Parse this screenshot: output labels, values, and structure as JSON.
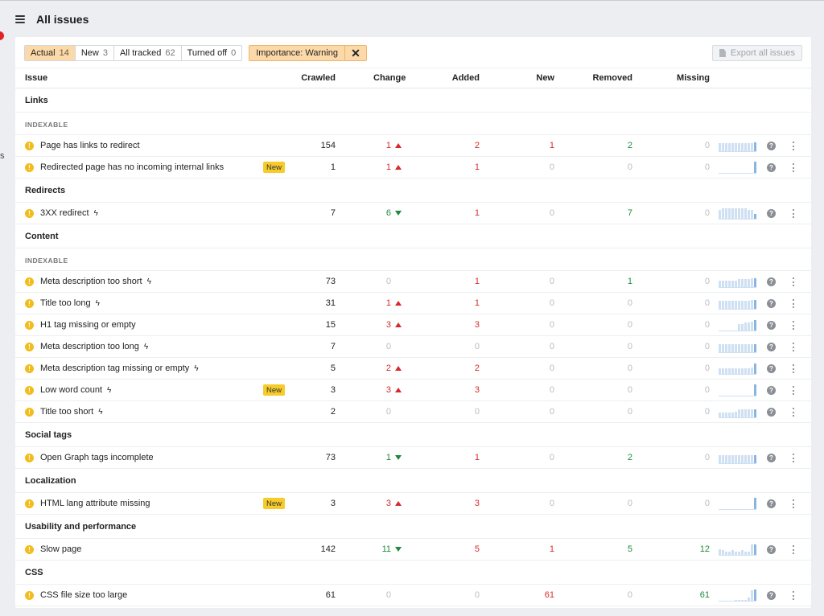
{
  "header": {
    "title": "All issues",
    "menu_icon": "hamburger-icon"
  },
  "sidebar_fragment": "s",
  "filters": {
    "tabs": [
      {
        "label": "Actual",
        "count": "14",
        "active": true
      },
      {
        "label": "New",
        "count": "3",
        "active": false
      },
      {
        "label": "All tracked",
        "count": "62",
        "active": false
      },
      {
        "label": "Turned off",
        "count": "0",
        "active": false
      }
    ],
    "importance_chip": "Importance: Warning",
    "clear_icon": "close-icon"
  },
  "export_label": "Export all issues",
  "columns": {
    "issue": "Issue",
    "crawled": "Crawled",
    "change": "Change",
    "added": "Added",
    "new": "New",
    "removed": "Removed",
    "missing": "Missing"
  },
  "badge_new": "New",
  "warning_icon_glyph": "!",
  "help_icon_glyph": "?",
  "colors": {
    "accent": "#fcd9a8",
    "warning": "#f2bc1c",
    "increase": "#d62a2a",
    "decrease": "#1f8a3c",
    "sparkline": "#cfe0f3"
  },
  "sections": [
    {
      "type": "group",
      "label": "Links"
    },
    {
      "type": "sub",
      "label": "INDEXABLE"
    },
    {
      "type": "row",
      "issue": "Page has links to redirect",
      "bolt": false,
      "is_new": false,
      "crawled": "154",
      "change": "1",
      "change_dir": "up",
      "added": "2",
      "new": "1",
      "removed": "2",
      "missing": "0",
      "spark": [
        7,
        7,
        7,
        7,
        7,
        7,
        7,
        7,
        7,
        7,
        7,
        8
      ]
    },
    {
      "type": "row",
      "issue": "Redirected page has no incoming internal links",
      "bolt": false,
      "is_new": true,
      "crawled": "1",
      "change": "1",
      "change_dir": "up",
      "added": "1",
      "new": "0",
      "removed": "0",
      "missing": "0",
      "spark": [
        0,
        0,
        0,
        0,
        0,
        0,
        0,
        0,
        0,
        0,
        0,
        10
      ]
    },
    {
      "type": "group",
      "label": "Redirects"
    },
    {
      "type": "row",
      "issue": "3XX redirect",
      "bolt": true,
      "is_new": false,
      "crawled": "7",
      "change": "6",
      "change_dir": "down",
      "added": "1",
      "new": "0",
      "removed": "7",
      "missing": "0",
      "spark": [
        8,
        9,
        9,
        9,
        9,
        9,
        9,
        9,
        9,
        8,
        8,
        4
      ]
    },
    {
      "type": "group",
      "label": "Content"
    },
    {
      "type": "sub",
      "label": "INDEXABLE"
    },
    {
      "type": "row",
      "issue": "Meta description too short",
      "bolt": true,
      "is_new": false,
      "crawled": "73",
      "change": "0",
      "change_dir": "none",
      "added": "1",
      "new": "0",
      "removed": "1",
      "missing": "0",
      "spark": [
        6,
        6,
        6,
        6,
        6,
        6,
        7,
        7,
        7,
        7,
        8,
        8
      ]
    },
    {
      "type": "row",
      "issue": "Title too long",
      "bolt": true,
      "is_new": false,
      "crawled": "31",
      "change": "1",
      "change_dir": "up",
      "added": "1",
      "new": "0",
      "removed": "0",
      "missing": "0",
      "spark": [
        7,
        7,
        7,
        7,
        7,
        7,
        7,
        7,
        7,
        7,
        8,
        8
      ]
    },
    {
      "type": "row",
      "issue": "H1 tag missing or empty",
      "bolt": false,
      "is_new": false,
      "crawled": "15",
      "change": "3",
      "change_dir": "up",
      "added": "3",
      "new": "0",
      "removed": "0",
      "missing": "0",
      "spark": [
        0,
        0,
        0,
        0,
        0,
        0,
        6,
        6,
        7,
        7,
        8,
        9
      ]
    },
    {
      "type": "row",
      "issue": "Meta description too long",
      "bolt": true,
      "is_new": false,
      "crawled": "7",
      "change": "0",
      "change_dir": "none",
      "added": "0",
      "new": "0",
      "removed": "0",
      "missing": "0",
      "spark": [
        7,
        7,
        7,
        7,
        7,
        7,
        7,
        7,
        7,
        7,
        7,
        7
      ]
    },
    {
      "type": "row",
      "issue": "Meta description tag missing or empty",
      "bolt": true,
      "is_new": false,
      "crawled": "5",
      "change": "2",
      "change_dir": "up",
      "added": "2",
      "new": "0",
      "removed": "0",
      "missing": "0",
      "spark": [
        5,
        5,
        5,
        5,
        5,
        5,
        5,
        5,
        5,
        5,
        6,
        9
      ]
    },
    {
      "type": "row",
      "issue": "Low word count",
      "bolt": true,
      "is_new": true,
      "crawled": "3",
      "change": "3",
      "change_dir": "up",
      "added": "3",
      "new": "0",
      "removed": "0",
      "missing": "0",
      "spark": [
        0,
        0,
        0,
        0,
        0,
        0,
        0,
        0,
        0,
        0,
        0,
        10
      ]
    },
    {
      "type": "row",
      "issue": "Title too short",
      "bolt": true,
      "is_new": false,
      "crawled": "2",
      "change": "0",
      "change_dir": "none",
      "added": "0",
      "new": "0",
      "removed": "0",
      "missing": "0",
      "spark": [
        4,
        4,
        4,
        4,
        4,
        5,
        7,
        7,
        7,
        7,
        7,
        7
      ]
    },
    {
      "type": "group",
      "label": "Social tags"
    },
    {
      "type": "row",
      "issue": "Open Graph tags incomplete",
      "bolt": false,
      "is_new": false,
      "crawled": "73",
      "change": "1",
      "change_dir": "down",
      "added": "1",
      "new": "0",
      "removed": "2",
      "missing": "0",
      "spark": [
        7,
        7,
        7,
        7,
        7,
        7,
        7,
        7,
        7,
        7,
        7,
        7
      ]
    },
    {
      "type": "group",
      "label": "Localization"
    },
    {
      "type": "row",
      "issue": "HTML lang attribute missing",
      "bolt": false,
      "is_new": true,
      "crawled": "3",
      "change": "3",
      "change_dir": "up",
      "added": "3",
      "new": "0",
      "removed": "0",
      "missing": "0",
      "spark": [
        0,
        0,
        0,
        0,
        0,
        0,
        0,
        0,
        0,
        0,
        0,
        10
      ]
    },
    {
      "type": "group",
      "label": "Usability and performance"
    },
    {
      "type": "row",
      "issue": "Slow page",
      "bolt": false,
      "is_new": false,
      "crawled": "142",
      "change": "11",
      "change_dir": "down",
      "added": "5",
      "new": "1",
      "removed": "5",
      "missing": "12",
      "missing_green": true,
      "spark": [
        5,
        4,
        3,
        3,
        4,
        3,
        3,
        4,
        3,
        3,
        9,
        9
      ]
    },
    {
      "type": "group",
      "label": "CSS"
    },
    {
      "type": "row",
      "issue": "CSS file size too large",
      "bolt": false,
      "is_new": false,
      "crawled": "61",
      "change": "0",
      "change_dir": "none",
      "added": "0",
      "new": "61",
      "new_red": true,
      "removed": "0",
      "missing": "61",
      "missing_green": true,
      "spark": [
        0,
        0,
        0,
        0,
        0,
        1,
        1,
        1,
        1,
        3,
        9,
        10
      ]
    }
  ]
}
